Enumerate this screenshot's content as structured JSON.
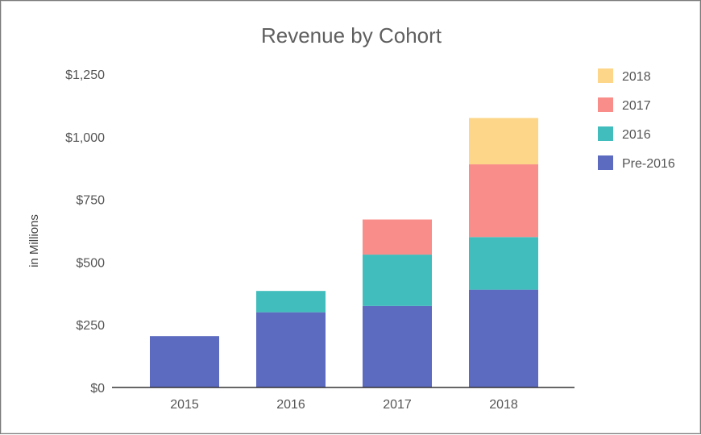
{
  "chart_data": {
    "type": "bar",
    "stacked": true,
    "title": "Revenue by Cohort",
    "ylabel": "in Millions",
    "xlabel": "",
    "categories": [
      "2015",
      "2016",
      "2017",
      "2018"
    ],
    "ylim": [
      0,
      1250
    ],
    "yticks": [
      0,
      250,
      500,
      750,
      1000,
      1250
    ],
    "ytick_labels": [
      "$0",
      "$250",
      "$500",
      "$750",
      "$1,000",
      "$1,250"
    ],
    "series": [
      {
        "name": "Pre-2016",
        "color": "#5c6bc0",
        "values": [
          205,
          300,
          325,
          390
        ]
      },
      {
        "name": "2016",
        "color": "#42bdbd",
        "values": [
          0,
          85,
          205,
          210
        ]
      },
      {
        "name": "2017",
        "color": "#f88d8a",
        "values": [
          0,
          0,
          140,
          290
        ]
      },
      {
        "name": "2018",
        "color": "#fdd68a",
        "values": [
          0,
          0,
          0,
          185
        ]
      }
    ],
    "legend_order": [
      "2018",
      "2017",
      "2016",
      "Pre-2016"
    ],
    "legend_position": "right",
    "grid": false
  }
}
